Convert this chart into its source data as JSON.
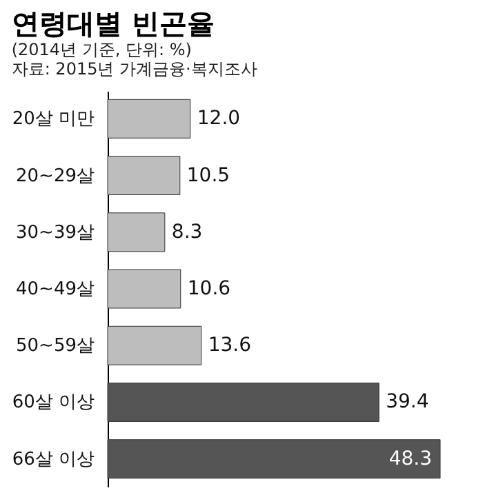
{
  "chart_data": {
    "type": "bar",
    "orientation": "horizontal",
    "title": "연령대별 빈곤율",
    "subtitle": "(2014년 기준, 단위: %)",
    "annotations": [
      "자료: 2015년 가계금융·복지조사"
    ],
    "categories": [
      "20살 미만",
      "20~29살",
      "30~39살",
      "40~49살",
      "50~59살",
      "60살 이상",
      "66살 이상"
    ],
    "values": [
      12.0,
      10.5,
      8.3,
      10.6,
      13.6,
      39.4,
      48.3
    ],
    "colors": [
      "#bdbdbd",
      "#bdbdbd",
      "#bdbdbd",
      "#bdbdbd",
      "#bdbdbd",
      "#555555",
      "#555555"
    ],
    "value_labels": [
      "12.0",
      "10.5",
      "8.3",
      "10.6",
      "13.6",
      "39.4",
      "48.3"
    ],
    "tick_labels": "y",
    "grid": false
  }
}
